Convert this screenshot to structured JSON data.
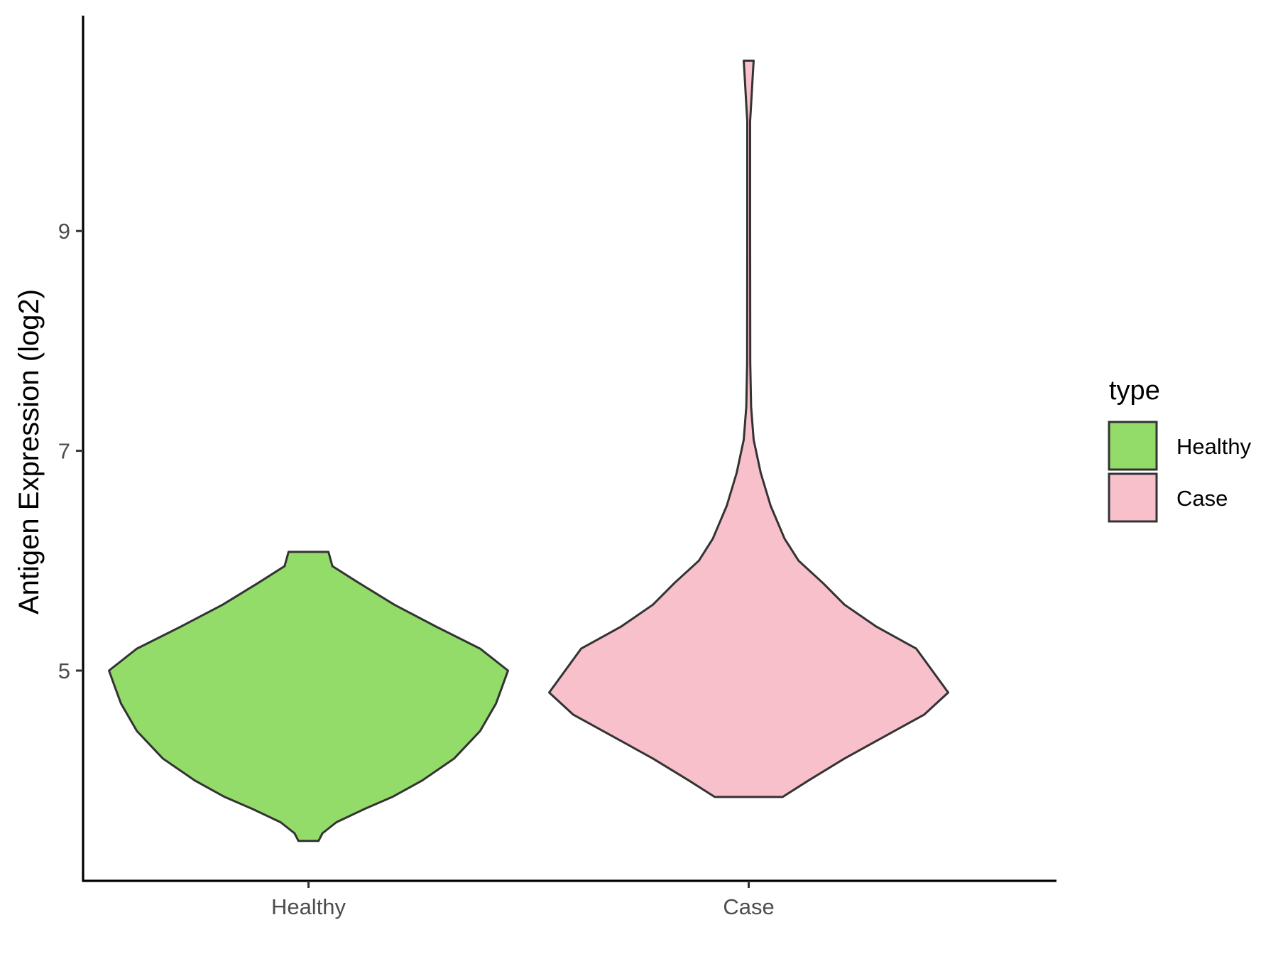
{
  "chart_data": {
    "type": "violin",
    "title": "",
    "xlabel": "",
    "ylabel": "Antigen Expression (log2)",
    "categories": [
      "Healthy",
      "Case"
    ],
    "yticks": [
      5,
      7,
      9
    ],
    "ylim": [
      3.05,
      10.9
    ],
    "grid": false,
    "legend": {
      "title": "type",
      "placement": "right",
      "entries": [
        {
          "label": "Healthy",
          "color": "#93DC6A"
        },
        {
          "label": "Case",
          "color": "#F7C0CB"
        }
      ]
    },
    "series": [
      {
        "name": "Healthy",
        "color": "#93DC6A",
        "min": 3.45,
        "max": 6.08,
        "density_profile": [
          [
            3.45,
            0.05
          ],
          [
            3.52,
            0.07
          ],
          [
            3.62,
            0.14
          ],
          [
            3.74,
            0.28
          ],
          [
            3.85,
            0.42
          ],
          [
            4.0,
            0.57
          ],
          [
            4.2,
            0.73
          ],
          [
            4.45,
            0.86
          ],
          [
            4.7,
            0.94
          ],
          [
            4.85,
            0.97
          ],
          [
            5.0,
            1.0
          ],
          [
            5.2,
            0.86
          ],
          [
            5.4,
            0.64
          ],
          [
            5.6,
            0.43
          ],
          [
            5.8,
            0.25
          ],
          [
            5.95,
            0.12
          ],
          [
            6.08,
            0.1
          ]
        ]
      },
      {
        "name": "Case",
        "color": "#F7C0CB",
        "min": 3.85,
        "max": 10.55,
        "density_profile": [
          [
            3.85,
            0.17
          ],
          [
            4.0,
            0.3
          ],
          [
            4.2,
            0.48
          ],
          [
            4.4,
            0.68
          ],
          [
            4.6,
            0.88
          ],
          [
            4.8,
            1.0
          ],
          [
            5.0,
            0.92
          ],
          [
            5.2,
            0.84
          ],
          [
            5.4,
            0.64
          ],
          [
            5.6,
            0.48
          ],
          [
            5.8,
            0.37
          ],
          [
            6.0,
            0.25
          ],
          [
            6.2,
            0.18
          ],
          [
            6.5,
            0.11
          ],
          [
            6.8,
            0.06
          ],
          [
            7.1,
            0.025
          ],
          [
            7.4,
            0.012
          ],
          [
            7.8,
            0.008
          ],
          [
            9.0,
            0.007
          ],
          [
            10.0,
            0.007
          ],
          [
            10.15,
            0.012
          ],
          [
            10.4,
            0.02
          ],
          [
            10.55,
            0.025
          ]
        ]
      }
    ]
  }
}
